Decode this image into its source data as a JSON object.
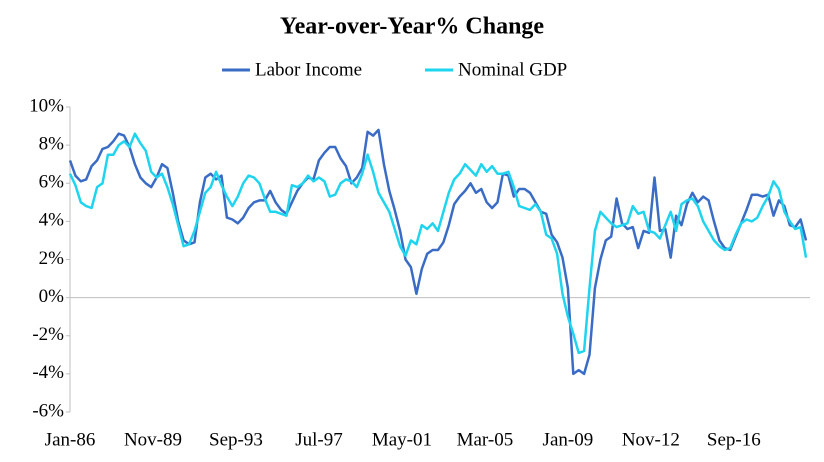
{
  "chart_data": {
    "type": "line",
    "title": "Year-over-Year% Change",
    "x": [
      "Jan-86",
      "Apr-86",
      "Jul-86",
      "Oct-86",
      "Jan-87",
      "Apr-87",
      "Jul-87",
      "Oct-87",
      "Jan-88",
      "Apr-88",
      "Jul-88",
      "Oct-88",
      "Jan-89",
      "Apr-89",
      "Jul-89",
      "Oct-89",
      "Jan-90",
      "Apr-90",
      "Jul-90",
      "Oct-90",
      "Jan-91",
      "Apr-91",
      "Jul-91",
      "Oct-91",
      "Jan-92",
      "Apr-92",
      "Jul-92",
      "Oct-92",
      "Jan-93",
      "Apr-93",
      "Jul-93",
      "Oct-93",
      "Jan-94",
      "Apr-94",
      "Jul-94",
      "Oct-94",
      "Jan-95",
      "Apr-95",
      "Jul-95",
      "Oct-95",
      "Jan-96",
      "Apr-96",
      "Jul-96",
      "Oct-96",
      "Jan-97",
      "Apr-97",
      "Jul-97",
      "Oct-97",
      "Jan-98",
      "Apr-98",
      "Jul-98",
      "Oct-98",
      "Jan-99",
      "Apr-99",
      "Jul-99",
      "Oct-99",
      "Jan-00",
      "Apr-00",
      "Jul-00",
      "Oct-00",
      "Jan-01",
      "Apr-01",
      "Jul-01",
      "Oct-01",
      "Jan-02",
      "Apr-02",
      "Jul-02",
      "Oct-02",
      "Jan-03",
      "Apr-03",
      "Jul-03",
      "Oct-03",
      "Jan-04",
      "Apr-04",
      "Jul-04",
      "Oct-04",
      "Jan-05",
      "Apr-05",
      "Jul-05",
      "Oct-05",
      "Jan-06",
      "Apr-06",
      "Jul-06",
      "Oct-06",
      "Jan-07",
      "Apr-07",
      "Jul-07",
      "Oct-07",
      "Jan-08",
      "Apr-08",
      "Jul-08",
      "Oct-08",
      "Jan-09",
      "Apr-09",
      "Jul-09",
      "Oct-09",
      "Jan-10",
      "Apr-10",
      "Jul-10",
      "Oct-10",
      "Jan-11",
      "Apr-11",
      "Jul-11",
      "Oct-11",
      "Jan-12",
      "Apr-12",
      "Jul-12",
      "Oct-12",
      "Jan-13",
      "Apr-13",
      "Jul-13",
      "Oct-13",
      "Jan-14",
      "Apr-14",
      "Jul-14",
      "Oct-14",
      "Jan-15",
      "Apr-15",
      "Jul-15",
      "Oct-15",
      "Jan-16",
      "Apr-16",
      "Jul-16",
      "Oct-16",
      "Jan-17",
      "Apr-17",
      "Jul-17",
      "Oct-17",
      "Jan-18",
      "Apr-18",
      "Jul-18",
      "Oct-18",
      "Jan-19",
      "Apr-19",
      "Jul-19",
      "Oct-19",
      "Jan-20"
    ],
    "series": [
      {
        "name": "Labor Income",
        "color": "#3a6cc6",
        "values": [
          7.2,
          6.4,
          6.1,
          6.2,
          6.9,
          7.2,
          7.8,
          7.9,
          8.2,
          8.6,
          8.5,
          7.9,
          7.0,
          6.3,
          6.0,
          5.8,
          6.3,
          7.0,
          6.8,
          5.5,
          4.0,
          3.0,
          2.8,
          2.9,
          5.0,
          6.3,
          6.5,
          6.2,
          6.4,
          4.2,
          4.1,
          3.9,
          4.2,
          4.7,
          5.0,
          5.1,
          5.1,
          5.6,
          5.0,
          4.6,
          4.4,
          5.0,
          5.6,
          6.0,
          6.3,
          6.2,
          7.2,
          7.6,
          7.9,
          7.9,
          7.3,
          6.9,
          6.0,
          6.3,
          6.8,
          8.7,
          8.5,
          8.8,
          7.0,
          5.6,
          4.6,
          3.5,
          2.0,
          1.6,
          0.2,
          1.5,
          2.3,
          2.5,
          2.5,
          2.9,
          3.8,
          4.9,
          5.3,
          5.6,
          6.0,
          5.5,
          5.7,
          5.0,
          4.7,
          5.0,
          6.5,
          6.4,
          5.3,
          5.7,
          5.7,
          5.5,
          5.0,
          4.5,
          4.4,
          3.3,
          2.9,
          2.1,
          0.5,
          -4.0,
          -3.8,
          -4.0,
          -3.0,
          0.5,
          2.0,
          3.0,
          3.2,
          5.2,
          3.9,
          3.6,
          3.7,
          2.6,
          3.5,
          3.4,
          6.3,
          3.5,
          3.6,
          2.1,
          4.3,
          3.8,
          4.9,
          5.5,
          5.0,
          5.3,
          5.1,
          4.0,
          3.0,
          2.6,
          2.5,
          3.2,
          3.9,
          4.6,
          5.4,
          5.4,
          5.3,
          5.4,
          4.3,
          5.1,
          4.8,
          3.8,
          3.7,
          4.1,
          3.0
        ]
      },
      {
        "name": "Nominal GDP",
        "color": "#1fd4ee",
        "values": [
          6.5,
          5.9,
          5.0,
          4.8,
          4.7,
          5.8,
          6.0,
          7.5,
          7.5,
          8.0,
          8.2,
          7.9,
          8.6,
          8.1,
          7.7,
          6.6,
          6.3,
          6.5,
          5.8,
          4.9,
          3.8,
          2.7,
          2.8,
          3.5,
          4.5,
          5.5,
          5.8,
          6.6,
          5.9,
          5.3,
          4.8,
          5.3,
          6.0,
          6.4,
          6.3,
          6.0,
          5.2,
          4.5,
          4.5,
          4.4,
          4.3,
          5.9,
          5.8,
          6.0,
          6.4,
          6.1,
          6.3,
          6.1,
          5.3,
          5.4,
          6.0,
          6.2,
          6.1,
          5.8,
          6.5,
          7.5,
          6.6,
          5.5,
          5.0,
          4.5,
          3.6,
          2.7,
          2.2,
          3.0,
          2.8,
          3.8,
          3.6,
          3.9,
          3.5,
          4.5,
          5.5,
          6.2,
          6.5,
          7.0,
          6.7,
          6.4,
          7.0,
          6.6,
          6.9,
          6.5,
          6.5,
          6.6,
          5.8,
          4.8,
          4.7,
          4.6,
          4.9,
          4.5,
          3.3,
          3.1,
          2.3,
          0.2,
          -1.0,
          -1.9,
          -2.9,
          -2.8,
          0.5,
          3.5,
          4.5,
          4.2,
          3.9,
          3.7,
          3.8,
          3.9,
          4.8,
          4.4,
          4.5,
          3.5,
          3.4,
          3.1,
          3.8,
          4.5,
          3.5,
          4.9,
          5.1,
          5.2,
          4.8,
          4.0,
          3.5,
          3.0,
          2.7,
          2.5,
          2.6,
          3.3,
          3.9,
          4.1,
          4.0,
          4.2,
          4.8,
          5.3,
          6.1,
          5.7,
          4.5,
          4.0,
          3.6,
          3.7,
          2.1
        ]
      }
    ],
    "xticks": [
      "Jan-86",
      "Nov-89",
      "Sep-93",
      "Jul-97",
      "May-01",
      "Mar-05",
      "Jan-09",
      "Nov-12",
      "Sep-16"
    ],
    "ylim": [
      -6,
      10
    ],
    "yticks": [
      {
        "value": -6,
        "label": "-6%"
      },
      {
        "value": -4,
        "label": "-4%"
      },
      {
        "value": -2,
        "label": "-2%"
      },
      {
        "value": 0,
        "label": "0%"
      },
      {
        "value": 2,
        "label": "2%"
      },
      {
        "value": 4,
        "label": "4%"
      },
      {
        "value": 6,
        "label": "6%"
      },
      {
        "value": 8,
        "label": "8%"
      },
      {
        "value": 10,
        "label": "10%"
      }
    ],
    "legend": "top"
  }
}
